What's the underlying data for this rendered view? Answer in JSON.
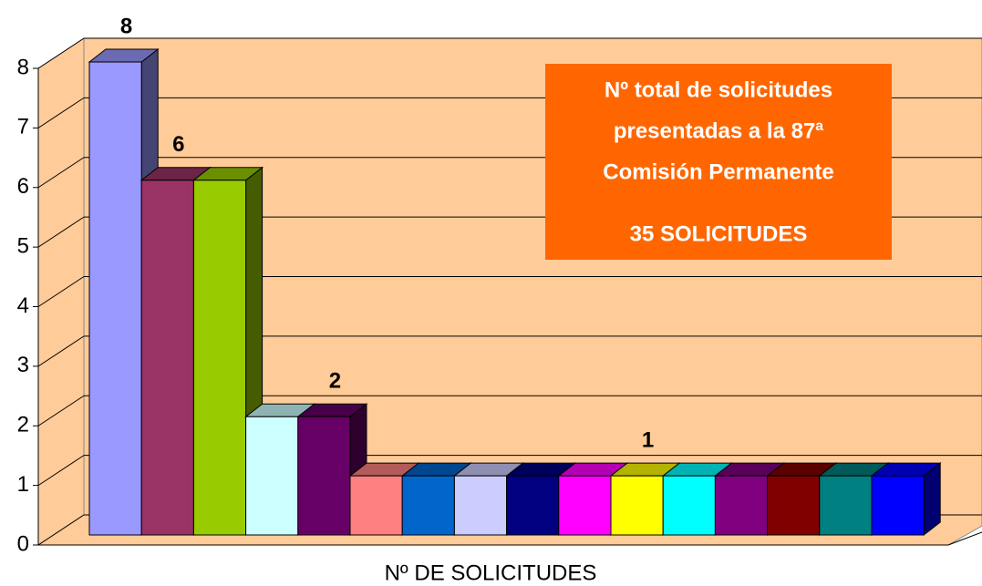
{
  "chart_data": {
    "type": "bar3d",
    "x_label": "Nº DE SOLICITUDES",
    "values": [
      8,
      6,
      6,
      2,
      2,
      1,
      1,
      1,
      1,
      1,
      1,
      1,
      1,
      1,
      1,
      1
    ],
    "value_labels": [
      "8",
      "6",
      null,
      null,
      "2",
      null,
      null,
      null,
      null,
      null,
      "1",
      null,
      null,
      null,
      null,
      null
    ],
    "colors": [
      "#9999ff",
      "#993366",
      "#99cc00",
      "#ccffff",
      "#660066",
      "#ff8080",
      "#0066cc",
      "#ccccff",
      "#000080",
      "#ff00ff",
      "#ffff00",
      "#00ffff",
      "#800080",
      "#800000",
      "#008080",
      "#0000ff"
    ],
    "ylim": [
      0,
      8
    ],
    "yticks": [
      0,
      1,
      2,
      3,
      4,
      5,
      6,
      7,
      8
    ],
    "grid": true,
    "wall_color": "#ffcc99",
    "annotation": {
      "color": "#ff6600",
      "lines": [
        "Nº  total de solicitudes",
        "presentadas a la 87ª",
        "Comisión Permanente",
        "35  SOLICITUDES"
      ]
    }
  }
}
